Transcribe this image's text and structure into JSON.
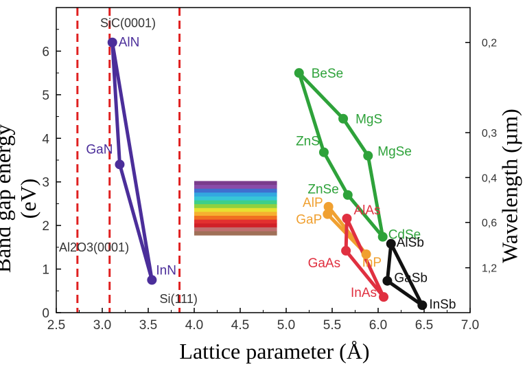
{
  "chart_data": {
    "type": "scatter",
    "xlabel": "Lattice parameter (Å)",
    "ylabel": "Band gap energy (eV)",
    "y2label": "Wavelength (µm)",
    "xlim": [
      2.5,
      7.0
    ],
    "ylim": [
      0,
      7
    ],
    "xticks": [
      "2.5",
      "3.0",
      "3.5",
      "4.0",
      "4.5",
      "5.0",
      "5.5",
      "6.0",
      "6.5",
      "7.0"
    ],
    "yticks": [
      "0",
      "1",
      "2",
      "3",
      "4",
      "5",
      "6"
    ],
    "y2ticks": [
      {
        "label": "0,2",
        "energy": 6.2
      },
      {
        "label": "0,3",
        "energy": 4.13
      },
      {
        "label": "0,4",
        "energy": 3.1
      },
      {
        "label": "0,6",
        "energy": 2.07
      },
      {
        "label": "1,2",
        "energy": 1.03
      }
    ],
    "reference_lines": [
      {
        "x": 2.73,
        "label": "Al2O3(0001)"
      },
      {
        "x": 3.08,
        "label": "SiC(0001)"
      },
      {
        "x": 3.84,
        "label": "Si(111)"
      }
    ],
    "materials": [
      {
        "name": "AlN",
        "x": 3.11,
        "y": 6.2,
        "color": "#4b2e9a"
      },
      {
        "name": "GaN",
        "x": 3.19,
        "y": 3.4,
        "color": "#4b2e9a"
      },
      {
        "name": "InN",
        "x": 3.54,
        "y": 0.75,
        "color": "#4b2e9a"
      },
      {
        "name": "BeSe",
        "x": 5.14,
        "y": 5.5,
        "color": "#2ea23a"
      },
      {
        "name": "MgS",
        "x": 5.62,
        "y": 4.45,
        "color": "#2ea23a"
      },
      {
        "name": "ZnS",
        "x": 5.41,
        "y": 3.68,
        "color": "#2ea23a"
      },
      {
        "name": "MgSe",
        "x": 5.89,
        "y": 3.6,
        "color": "#2ea23a"
      },
      {
        "name": "ZnSe",
        "x": 5.67,
        "y": 2.7,
        "color": "#2ea23a"
      },
      {
        "name": "CdSe",
        "x": 6.05,
        "y": 1.74,
        "color": "#2ea23a"
      },
      {
        "name": "AlP",
        "x": 5.46,
        "y": 2.43,
        "color": "#f0a030"
      },
      {
        "name": "GaP",
        "x": 5.45,
        "y": 2.26,
        "color": "#f0a030"
      },
      {
        "name": "InP",
        "x": 5.87,
        "y": 1.34,
        "color": "#f0a030"
      },
      {
        "name": "AlAs",
        "x": 5.66,
        "y": 2.16,
        "color": "#e03040"
      },
      {
        "name": "GaAs",
        "x": 5.65,
        "y": 1.42,
        "color": "#e03040"
      },
      {
        "name": "InAs",
        "x": 6.06,
        "y": 0.36,
        "color": "#e03040"
      },
      {
        "name": "AlSb",
        "x": 6.14,
        "y": 1.58,
        "color": "#111111"
      },
      {
        "name": "GaSb",
        "x": 6.1,
        "y": 0.73,
        "color": "#111111"
      },
      {
        "name": "InSb",
        "x": 6.48,
        "y": 0.17,
        "color": "#111111"
      }
    ],
    "connections": [
      {
        "color": "#4b2e9a",
        "points": [
          [
            3.11,
            6.2
          ],
          [
            3.19,
            3.4
          ],
          [
            3.54,
            0.75
          ],
          [
            3.11,
            6.2
          ]
        ]
      },
      {
        "color": "#2ea23a",
        "points": [
          [
            5.14,
            5.5
          ],
          [
            5.62,
            4.45
          ],
          [
            5.89,
            3.6
          ],
          [
            6.05,
            1.74
          ],
          [
            5.67,
            2.7
          ],
          [
            5.41,
            3.68
          ],
          [
            5.14,
            5.5
          ]
        ]
      },
      {
        "color": "#f0a030",
        "points": [
          [
            5.46,
            2.43
          ],
          [
            5.87,
            1.34
          ],
          [
            5.45,
            2.26
          ],
          [
            5.46,
            2.43
          ]
        ]
      },
      {
        "color": "#e03040",
        "points": [
          [
            5.66,
            2.16
          ],
          [
            6.06,
            0.36
          ],
          [
            5.65,
            1.42
          ],
          [
            5.66,
            2.16
          ]
        ]
      },
      {
        "color": "#111111",
        "points": [
          [
            6.14,
            1.58
          ],
          [
            6.48,
            0.17
          ],
          [
            6.1,
            0.73
          ],
          [
            6.14,
            1.58
          ]
        ]
      }
    ],
    "spectrum_colors": [
      "#7a3c8c",
      "#8a4ca8",
      "#3f6fd0",
      "#33a8e0",
      "#37c6d8",
      "#3ecf8a",
      "#8fd040",
      "#e8e030",
      "#f6b030",
      "#f07020",
      "#e23030",
      "#d02028",
      "#c07070",
      "#a07058"
    ],
    "spectrum_range": {
      "x": [
        4.0,
        4.9
      ],
      "y": [
        1.78,
        3.02
      ]
    }
  }
}
